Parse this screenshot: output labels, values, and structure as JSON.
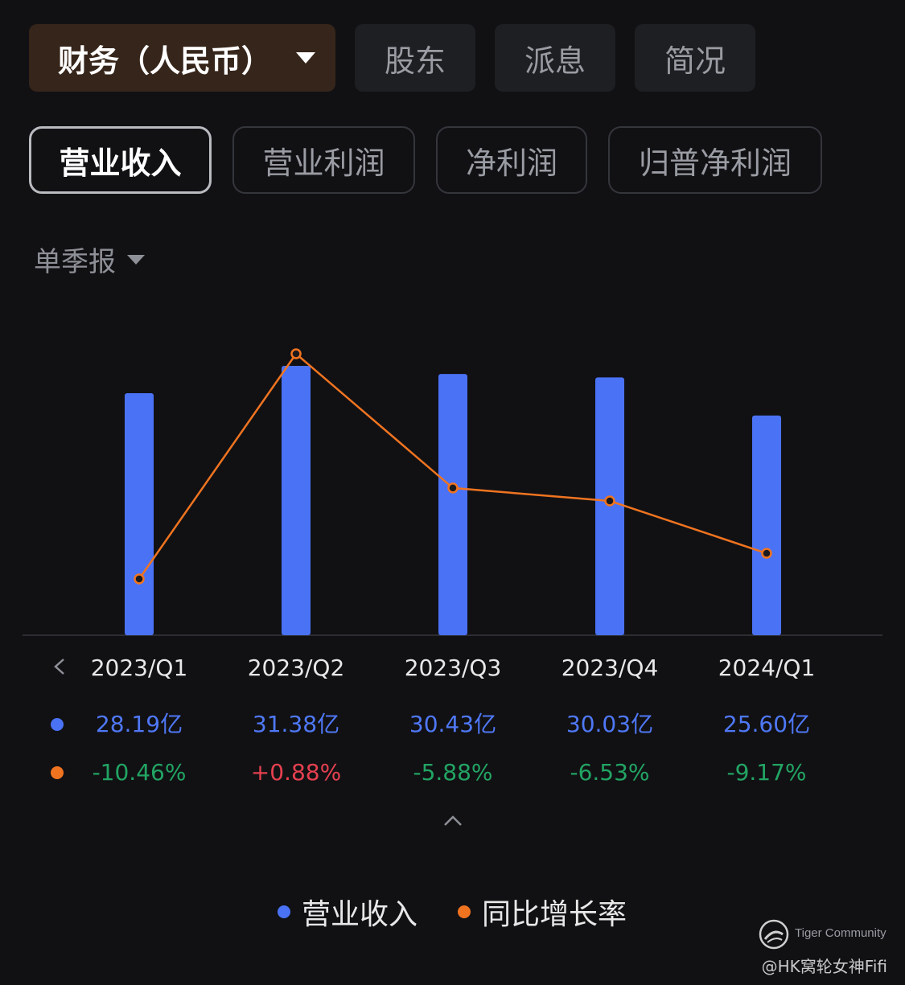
{
  "top_tabs": [
    "财务（人民币）",
    "股东",
    "派息",
    "简况"
  ],
  "metric_tabs": [
    "营业收入",
    "营业利润",
    "净利润",
    "归普净利润"
  ],
  "period_selector": "单季报",
  "colors": {
    "revenue": "#4a72f5",
    "yoy": "#f07420",
    "positive": "#e5404f",
    "negative": "#22a463"
  },
  "chart_data": {
    "type": "bar",
    "categories": [
      "2023/Q1",
      "2023/Q2",
      "2023/Q3",
      "2023/Q4",
      "2024/Q1"
    ],
    "series": [
      {
        "name": "营业收入",
        "type": "bar",
        "values": [
          28.19,
          31.38,
          30.43,
          30.03,
          25.6
        ],
        "unit": "亿"
      },
      {
        "name": "同比增长率",
        "type": "line",
        "values": [
          -10.46,
          0.88,
          -5.88,
          -6.53,
          -9.17
        ],
        "unit": "%"
      }
    ]
  },
  "table": {
    "revenue_labels": [
      "28.19亿",
      "31.38亿",
      "30.43亿",
      "30.03亿",
      "25.60亿"
    ],
    "yoy_labels": [
      "-10.46%",
      "+0.88%",
      "-5.88%",
      "-6.53%",
      "-9.17%"
    ]
  },
  "legend": [
    "营业收入",
    "同比增长率"
  ],
  "watermark": {
    "brand": "Tiger Community",
    "user": "@HK窝轮女神Fifi"
  }
}
